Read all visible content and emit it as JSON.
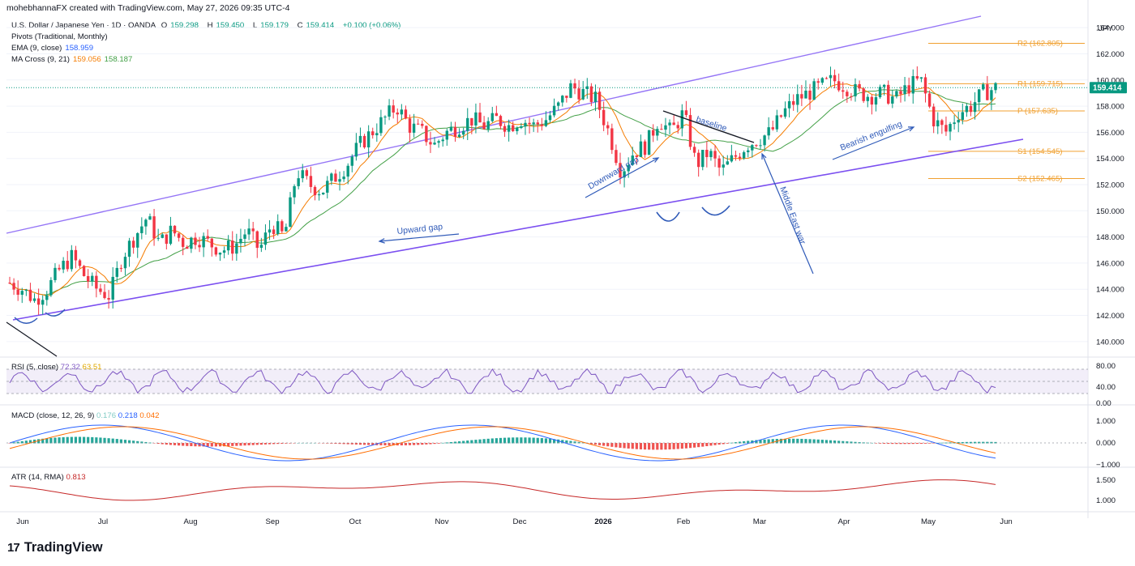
{
  "header": {
    "attribution": "mohebhannaFX created with TradingView.com, May 27, 2026 09:35 UTC-4"
  },
  "legend": {
    "symbol": "U.S. Dollar / Japanese Yen · 1D · OANDA",
    "o_label": "O",
    "o": "159.298",
    "h_label": "H",
    "h": "159.450",
    "l_label": "L",
    "l": "159.179",
    "c_label": "C",
    "c": "159.414",
    "change": "+0.100 (+0.06%)",
    "pivots": "Pivots (Traditional, Monthly)",
    "ema_label": "EMA (9, close)",
    "ema_value": "158.959",
    "ma_label": "MA Cross (9, 21)",
    "ma_fast": "159.056",
    "ma_slow": "158.187"
  },
  "currency": "JPY",
  "price_badge": "159.414",
  "colors": {
    "up": "#089981",
    "down": "#f23645",
    "channel": "#9575f6",
    "channel_lower": "#7b4ff0",
    "pivot": "#f0a030",
    "ema": "#2962ff",
    "ma_fast": "#f57c00",
    "ma_slow": "#43a047",
    "annot": "#2f5ab8",
    "rsi": "#7e57c2",
    "rsi_ma": "#f2c14e",
    "macd": "#2962ff",
    "signal": "#ff6d00",
    "atr": "#c62828"
  },
  "pivots": [
    {
      "label": "R2 (162.805)",
      "value": 162.805
    },
    {
      "label": "R1 (159.715)",
      "value": 159.715
    },
    {
      "label": "P (157.635)",
      "value": 157.635
    },
    {
      "label": "S1 (154.545)",
      "value": 154.545
    },
    {
      "label": "S2 (152.465)",
      "value": 152.465
    }
  ],
  "annotations": {
    "upward_gap": "Upward gap",
    "downward_gap": "Downward gap",
    "baseline": "baseline",
    "middle_east_war": "Middle East war",
    "bearish_engulfing": "Bearish engulfing"
  },
  "rsi": {
    "label": "RSI (5, close)",
    "value": "72.32",
    "ma": "63.51",
    "ticks": [
      "80.00",
      "40.00",
      "0.00"
    ]
  },
  "macd": {
    "label": "MACD (close, 12, 26, 9)",
    "hist": "0.176",
    "macd": "0.218",
    "signal": "0.042",
    "ticks": [
      "1.000",
      "0.000",
      "−1.000"
    ]
  },
  "atr": {
    "label": "ATR (14, RMA)",
    "value": "0.813",
    "ticks": [
      "1.500",
      "1.000"
    ]
  },
  "x_axis": [
    "Jun",
    "Jul",
    "Aug",
    "Sep",
    "Oct",
    "Nov",
    "Dec",
    "2026",
    "Feb",
    "Mar",
    "Apr",
    "May",
    "Jun"
  ],
  "brand": {
    "name": "TradingView",
    "logo": "17"
  },
  "chart_data": {
    "type": "candlestick",
    "title": "U.S. Dollar / Japanese Yen · 1D · OANDA",
    "y_ticks": [
      164,
      162,
      160,
      158,
      156,
      154,
      152,
      150,
      148,
      146,
      144,
      142,
      140
    ],
    "ylim": [
      139,
      165
    ],
    "x_labels": [
      "Jun",
      "Jul",
      "Aug",
      "Sep",
      "Oct",
      "Nov",
      "Dec",
      "2026",
      "Feb",
      "Mar",
      "Apr",
      "May",
      "Jun"
    ],
    "close_path": [
      144.5,
      144.0,
      143.2,
      144.0,
      145.5,
      146.5,
      145.0,
      144.0,
      143.5,
      146.5,
      148.0,
      149.5,
      147.5,
      148.5,
      147.5,
      148.0,
      147.5,
      147.0,
      147.3,
      148.5,
      147.0,
      149.0,
      148.0,
      153.0,
      152.0,
      151.5,
      152.5,
      153.5,
      155.0,
      156.0,
      157.0,
      158.0,
      156.5,
      156.0,
      155.0,
      156.0,
      156.5,
      157.0,
      156.5,
      157.0,
      156.5,
      157.0,
      156.5,
      157.0,
      158.0,
      159.5,
      159.0,
      158.5,
      156.0,
      153.0,
      154.5,
      155.0,
      157.0,
      156.0,
      157.5,
      153.5,
      154.5,
      153.0,
      154.0,
      155.0,
      155.5,
      156.0,
      157.5,
      158.5,
      159.0,
      159.5,
      160.0,
      159.5,
      159.0,
      158.8,
      159.0,
      158.5,
      159.5,
      160.0,
      157.0,
      156.0,
      157.5,
      158.0,
      159.0,
      159.4
    ]
  }
}
